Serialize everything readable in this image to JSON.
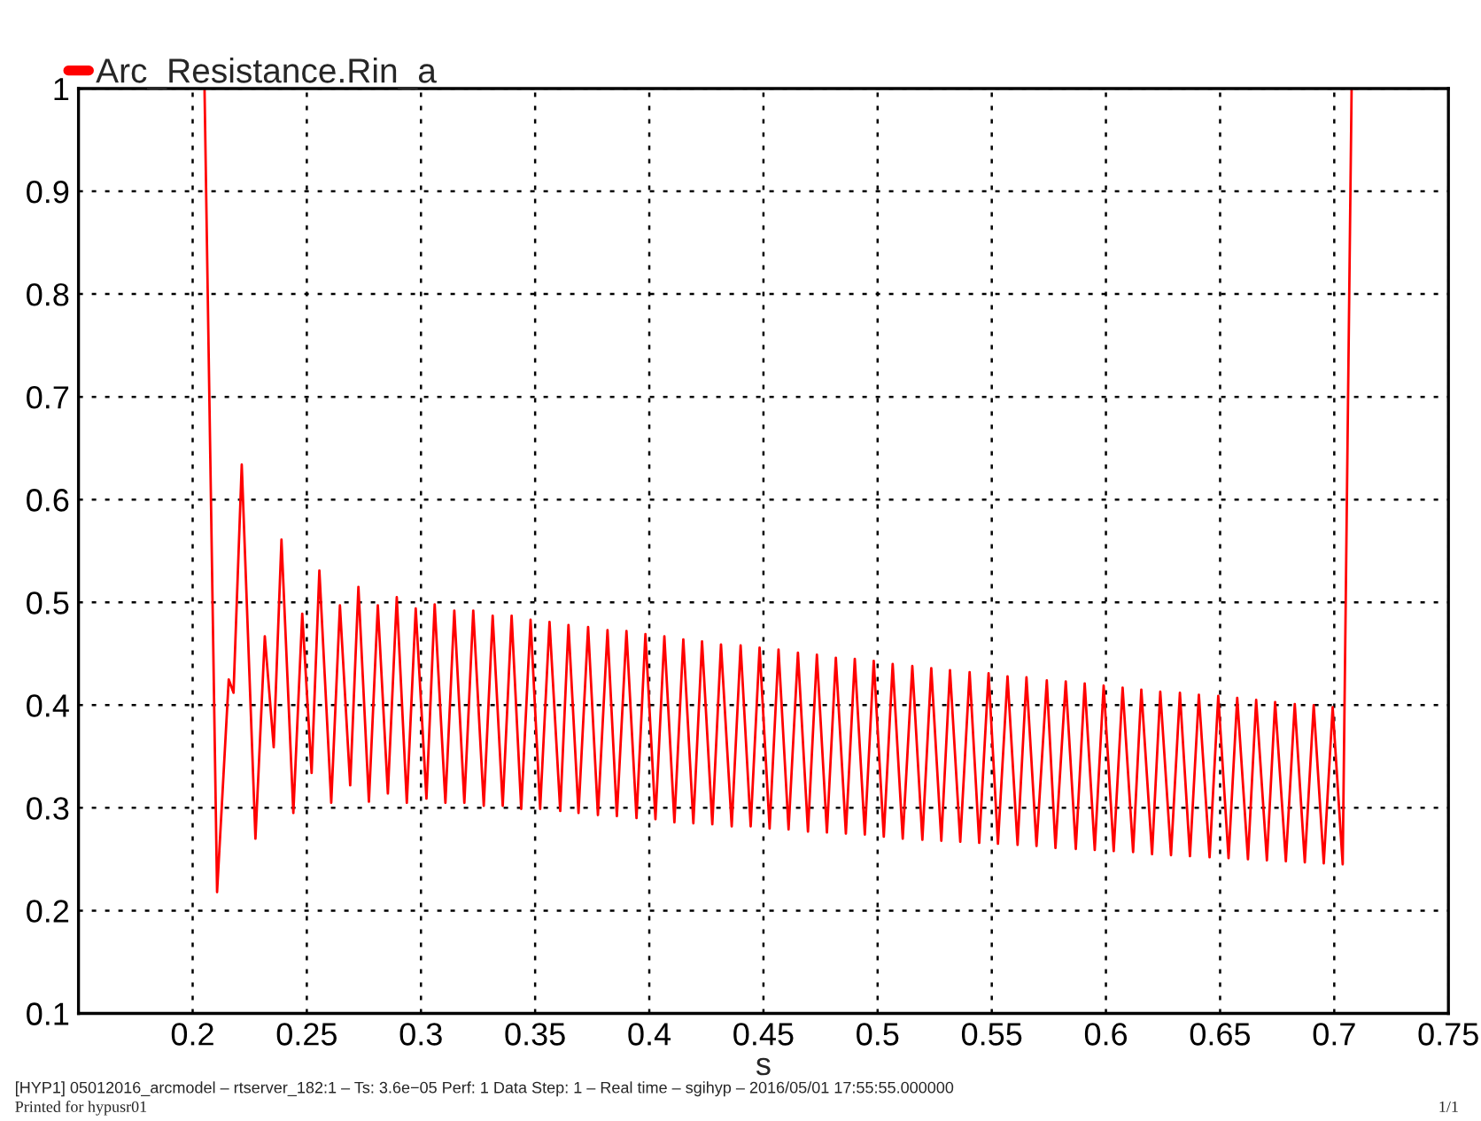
{
  "chart_data": {
    "type": "line",
    "xlabel": "s",
    "annotations": [
      "[HYP1] 05012016_arcmodel – rtserver_182:1 – Ts: 3.6e−05 Perf: 1 Data Step: 1 – Real time – sgihyp – 2016/05/01 17:55:55.000000",
      "Printed for hypusr01",
      "1/1"
    ],
    "xlim": [
      0.15,
      0.75
    ],
    "ylim": [
      0.1,
      1
    ],
    "xticks": [
      0.2,
      0.25,
      0.3,
      0.35,
      0.4,
      0.45,
      0.5,
      0.55,
      0.6,
      0.65,
      0.7,
      0.75
    ],
    "yticks": [
      0.1,
      0.2,
      0.3,
      0.4,
      0.5,
      0.6,
      0.7,
      0.8,
      0.9,
      1
    ],
    "grid": true,
    "legend": "top left",
    "series": [
      {
        "name": "Arc_Resistance.Rin_a",
        "color": "#ff0000",
        "x": [
          0.2052,
          0.2107,
          0.2158,
          0.2179,
          0.2215,
          0.2275,
          0.2316,
          0.2355,
          0.2389,
          0.2441,
          0.248,
          0.2521,
          0.2555,
          0.2607,
          0.2645,
          0.269,
          0.2726,
          0.2772,
          0.2811,
          0.2855,
          0.2894,
          0.2938,
          0.2977,
          0.3024,
          0.306,
          0.3107,
          0.3146,
          0.319,
          0.3229,
          0.3275,
          0.3314,
          0.3358,
          0.3397,
          0.3439,
          0.348,
          0.3522,
          0.3563,
          0.361,
          0.3646,
          0.369,
          0.3732,
          0.3775,
          0.3817,
          0.3858,
          0.39,
          0.3944,
          0.3983,
          0.4027,
          0.4066,
          0.411,
          0.4149,
          0.4193,
          0.4231,
          0.4276,
          0.4314,
          0.4361,
          0.44,
          0.4444,
          0.4483,
          0.4527,
          0.4566,
          0.461,
          0.4651,
          0.4695,
          0.4734,
          0.4778,
          0.4817,
          0.4861,
          0.49,
          0.4944,
          0.4983,
          0.5027,
          0.5066,
          0.511,
          0.5152,
          0.5196,
          0.5235,
          0.5279,
          0.5317,
          0.5362,
          0.5403,
          0.5445,
          0.5486,
          0.5527,
          0.5569,
          0.5613,
          0.5652,
          0.5696,
          0.5741,
          0.5779,
          0.5824,
          0.5868,
          0.5907,
          0.5951,
          0.599,
          0.6034,
          0.6073,
          0.6119,
          0.6155,
          0.6202,
          0.6238,
          0.6285,
          0.6324,
          0.6368,
          0.6407,
          0.6454,
          0.6492,
          0.6537,
          0.6575,
          0.6622,
          0.6658,
          0.6705,
          0.6741,
          0.6788,
          0.6827,
          0.6871,
          0.691,
          0.6954,
          0.6993,
          0.7037,
          0.7076
        ],
        "values": [
          1,
          0.218,
          0.425,
          0.412,
          0.634,
          0.27,
          0.467,
          0.359,
          0.561,
          0.295,
          0.489,
          0.334,
          0.531,
          0.305,
          0.497,
          0.322,
          0.515,
          0.306,
          0.497,
          0.314,
          0.505,
          0.305,
          0.494,
          0.309,
          0.498,
          0.305,
          0.492,
          0.305,
          0.492,
          0.302,
          0.487,
          0.302,
          0.487,
          0.299,
          0.483,
          0.299,
          0.481,
          0.297,
          0.478,
          0.295,
          0.476,
          0.293,
          0.473,
          0.292,
          0.472,
          0.29,
          0.469,
          0.289,
          0.467,
          0.286,
          0.464,
          0.285,
          0.462,
          0.284,
          0.459,
          0.282,
          0.458,
          0.282,
          0.456,
          0.28,
          0.454,
          0.279,
          0.451,
          0.277,
          0.449,
          0.276,
          0.446,
          0.275,
          0.445,
          0.274,
          0.443,
          0.272,
          0.44,
          0.27,
          0.438,
          0.269,
          0.436,
          0.268,
          0.434,
          0.267,
          0.432,
          0.266,
          0.431,
          0.265,
          0.428,
          0.264,
          0.427,
          0.263,
          0.424,
          0.261,
          0.423,
          0.26,
          0.421,
          0.259,
          0.419,
          0.258,
          0.417,
          0.257,
          0.415,
          0.255,
          0.413,
          0.254,
          0.412,
          0.253,
          0.41,
          0.252,
          0.409,
          0.251,
          0.407,
          0.25,
          0.405,
          0.249,
          0.403,
          0.248,
          0.401,
          0.247,
          0.4,
          0.246,
          0.398,
          0.245,
          1
        ]
      }
    ]
  }
}
